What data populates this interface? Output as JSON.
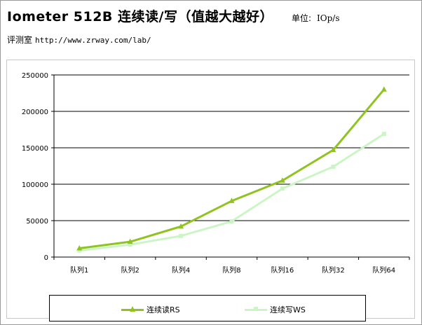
{
  "header": {
    "title": "Iometer 512B 连续读/写（值越大越好）",
    "unit_label": "单位:",
    "unit_value": "IOp/s",
    "source_label": "评测室",
    "source_url": "http://www.zrway.com/lab/"
  },
  "chart_data": {
    "type": "line",
    "title": "Iometer 512B 连续读/写（值越大越好）",
    "categories": [
      "队列1",
      "队列2",
      "队列4",
      "队列8",
      "队列16",
      "队列32",
      "队列64"
    ],
    "series": [
      {
        "name": "连续读RS",
        "values": [
          12000,
          21000,
          42000,
          77000,
          105000,
          147000,
          230000
        ],
        "color": "#8fc31f",
        "marker": "triangle"
      },
      {
        "name": "连续写WS",
        "values": [
          9000,
          17000,
          29000,
          49000,
          94000,
          124000,
          169000
        ],
        "color": "#ccf5c6",
        "marker": "square"
      }
    ],
    "ylim": [
      0,
      250000
    ],
    "yticks": [
      0,
      50000,
      100000,
      150000,
      200000,
      250000
    ],
    "grid": true,
    "legend": "bottom"
  }
}
